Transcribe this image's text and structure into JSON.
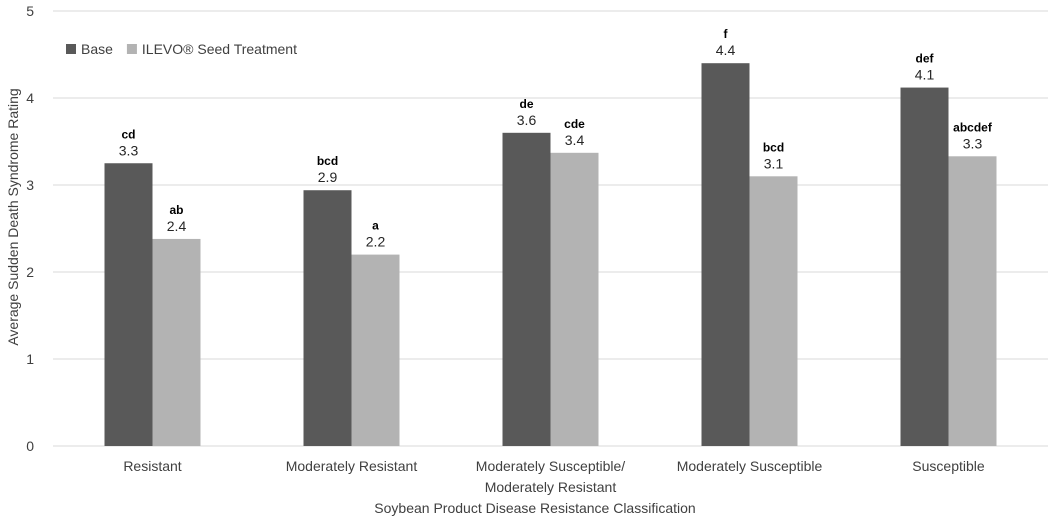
{
  "chart_data": {
    "type": "bar",
    "title": "",
    "xlabel": "Soybean Product Disease Resistance Classification",
    "ylabel": "Average Sudden Death Syndrome Rating",
    "ylim": [
      0,
      5
    ],
    "yticks": [
      0,
      1,
      2,
      3,
      4,
      5
    ],
    "grid": true,
    "legend": "top-left",
    "categories": [
      [
        "Resistant"
      ],
      [
        "Moderately Resistant"
      ],
      [
        "Moderately Susceptible/",
        "Moderately Resistant"
      ],
      [
        "Moderately Susceptible"
      ],
      [
        "Susceptible"
      ]
    ],
    "series": [
      {
        "name": "Base",
        "color": "#595959",
        "values": [
          3.25,
          2.94,
          3.6,
          4.4,
          4.12
        ],
        "value_labels": [
          "3.3",
          "2.9",
          "3.6",
          "4.4",
          "4.1"
        ],
        "letters": [
          "cd",
          "bcd",
          "de",
          "f",
          "def"
        ]
      },
      {
        "name": "ILEVO® Seed Treatment",
        "color": "#b3b3b3",
        "values": [
          2.38,
          2.2,
          3.37,
          3.1,
          3.33
        ],
        "value_labels": [
          "2.4",
          "2.2",
          "3.4",
          "3.1",
          "3.3"
        ],
        "letters": [
          "ab",
          "a",
          "cde",
          "bcd",
          "abcdef"
        ]
      }
    ]
  }
}
